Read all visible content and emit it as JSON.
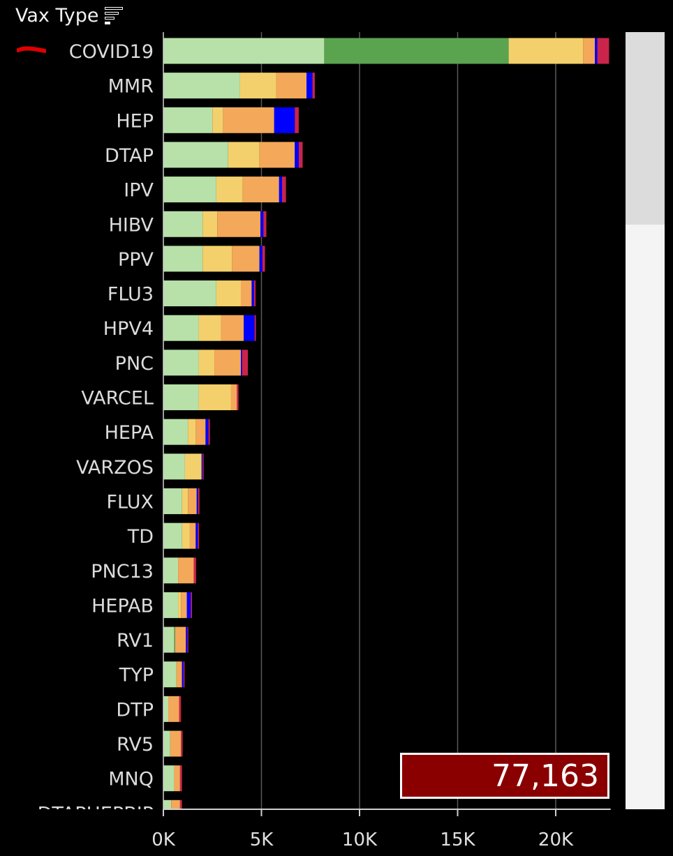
{
  "header": {
    "title": "Vax Type",
    "sort_icon": "sort-descending-icon"
  },
  "total": {
    "value": "77,163"
  },
  "colors": {
    "background": "#000000",
    "segments": [
      "#b7e1a8",
      "#5aa34f",
      "#f3d06b",
      "#f4a85a",
      "#0000ff",
      "#c9244a"
    ]
  },
  "chart_data": {
    "type": "bar",
    "orientation": "horizontal",
    "stacked": true,
    "ylabel": "Vax Type",
    "xlabel": "",
    "xlim": [
      0,
      22800
    ],
    "xticks": [
      "0K",
      "5K",
      "10K",
      "15K",
      "20K"
    ],
    "grid": true,
    "categories": [
      "COVID19",
      "MMR",
      "HEP",
      "DTAP",
      "IPV",
      "HIBV",
      "PPV",
      "FLU3",
      "HPV4",
      "PNC",
      "VARCEL",
      "HEPA",
      "VARZOS",
      "FLUX",
      "TD",
      "PNC13",
      "HEPAB",
      "RV1",
      "TYP",
      "DTP",
      "RV5",
      "MNQ",
      "DTAPHEPBIP"
    ],
    "series": [
      {
        "values": [
          8200,
          3900,
          2500,
          3300,
          2700,
          2000,
          2000,
          2700,
          1800,
          1800,
          1800,
          1250,
          1100,
          950,
          950,
          750,
          750,
          550,
          650,
          250,
          350,
          550,
          400
        ]
      },
      {
        "values": [
          9400,
          0,
          0,
          0,
          0,
          0,
          0,
          0,
          0,
          0,
          0,
          0,
          0,
          0,
          0,
          0,
          0,
          50,
          0,
          0,
          0,
          0,
          0
        ]
      },
      {
        "values": [
          3800,
          1850,
          550,
          1600,
          1350,
          750,
          1500,
          1250,
          1150,
          800,
          1650,
          400,
          850,
          300,
          400,
          0,
          150,
          0,
          50,
          0,
          0,
          0,
          0
        ]
      },
      {
        "values": [
          600,
          1550,
          2600,
          1800,
          1850,
          2200,
          1400,
          550,
          1150,
          1350,
          300,
          500,
          0,
          450,
          300,
          800,
          300,
          550,
          250,
          550,
          550,
          300,
          450
        ]
      },
      {
        "values": [
          120,
          300,
          1050,
          200,
          150,
          150,
          150,
          120,
          550,
          60,
          0,
          150,
          50,
          70,
          110,
          0,
          200,
          80,
          80,
          0,
          0,
          0,
          0
        ]
      },
      {
        "values": [
          600,
          120,
          200,
          200,
          200,
          150,
          130,
          80,
          70,
          300,
          80,
          70,
          50,
          70,
          60,
          120,
          60,
          40,
          50,
          100,
          80,
          100,
          100
        ]
      }
    ]
  }
}
